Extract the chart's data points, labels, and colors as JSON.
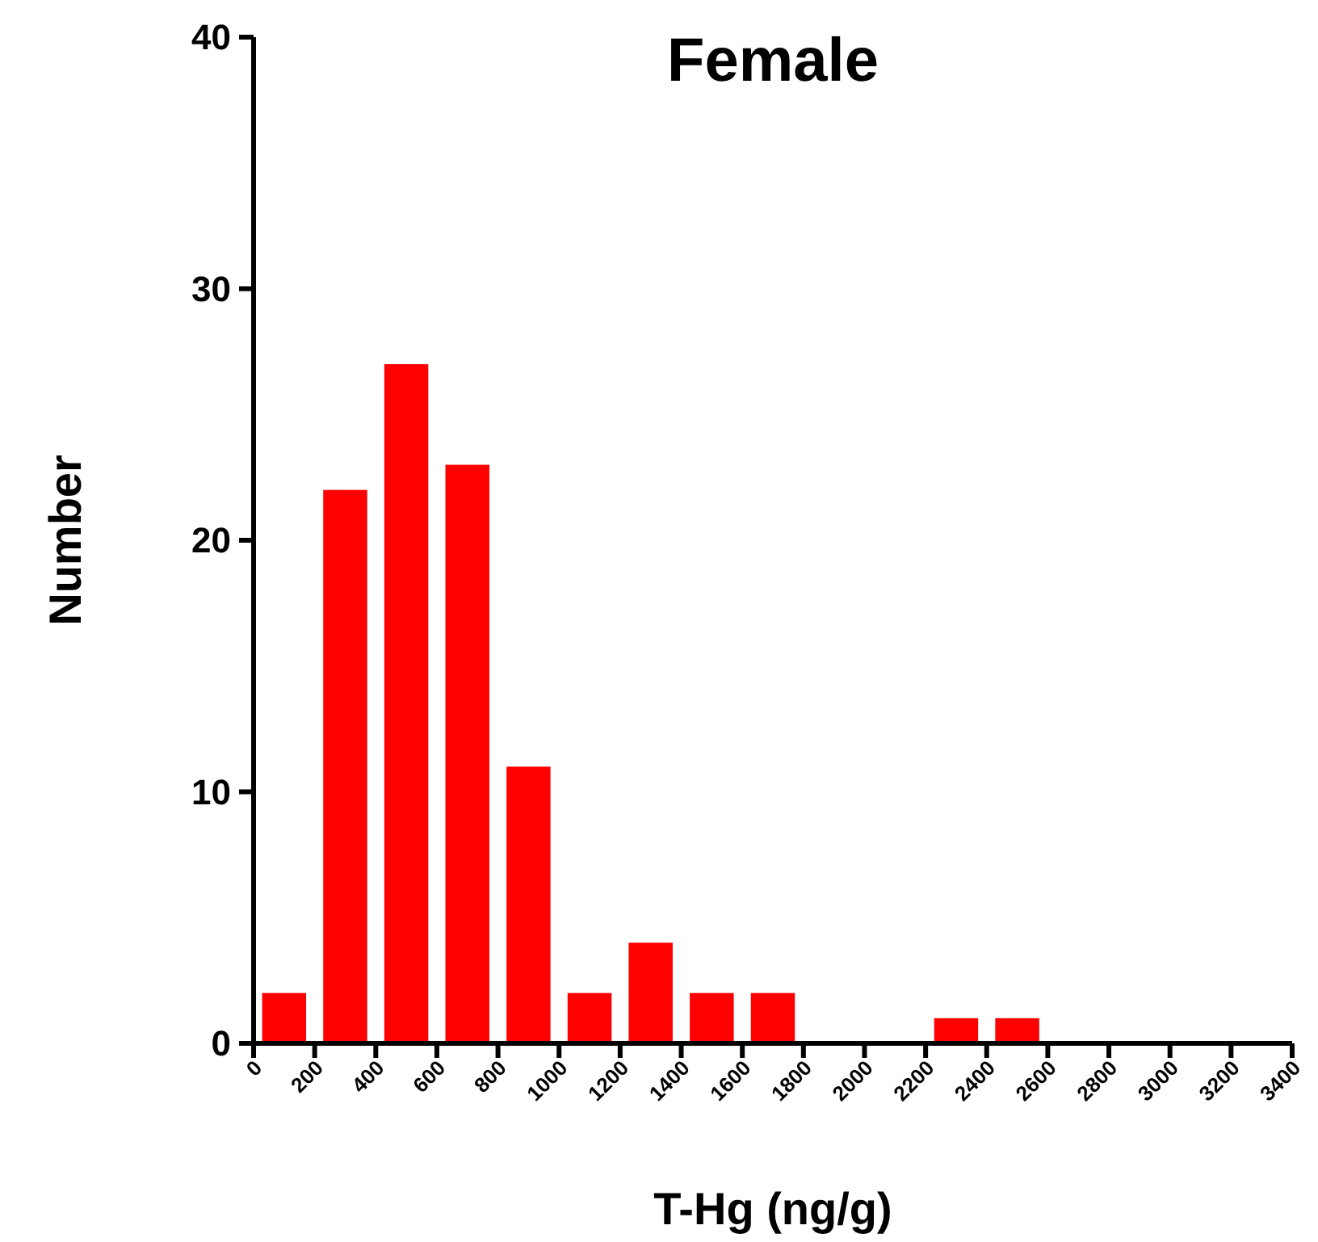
{
  "chart_data": {
    "type": "histogram",
    "title": "Female",
    "xlabel": "T-Hg (ng/g)",
    "ylabel": "Number",
    "bins": [
      0,
      200,
      400,
      600,
      800,
      1000,
      1200,
      1400,
      1600,
      1800,
      2000,
      2200,
      2400,
      2600
    ],
    "values": [
      2,
      22,
      27,
      23,
      11,
      2,
      4,
      2,
      2,
      0,
      0,
      1,
      1
    ],
    "color": "#ff0000",
    "xlim": [
      0,
      3400
    ],
    "xticks": [
      0,
      200,
      400,
      600,
      800,
      1000,
      1200,
      1400,
      1600,
      1800,
      2000,
      2200,
      2400,
      2600,
      2800,
      3000,
      3200,
      3400
    ],
    "ylim": [
      0,
      40
    ],
    "yticks": [
      0,
      10,
      20,
      30,
      40
    ],
    "grid": false
  }
}
